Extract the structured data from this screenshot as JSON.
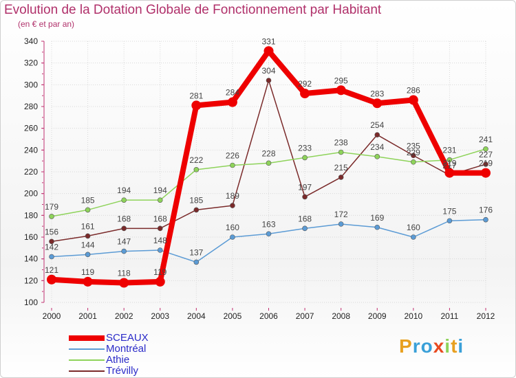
{
  "title": "Evolution de la Dotation Globale de Fonctionnement par Habitant",
  "subtitle": "(en € et par an)",
  "logo": "Proxiti",
  "chart_data": {
    "type": "line",
    "title": "Evolution de la Dotation Globale de Fonctionnement par Habitant",
    "subtitle": "(en € et par an)",
    "xlabel": "",
    "ylabel": "",
    "x": [
      "2000",
      "2001",
      "2002",
      "2003",
      "2004",
      "2005",
      "2006",
      "2007",
      "2008",
      "2009",
      "2010",
      "2011",
      "2012"
    ],
    "ylim": [
      100,
      340
    ],
    "yticks": [
      100,
      120,
      140,
      160,
      180,
      200,
      220,
      240,
      260,
      280,
      300,
      320,
      340
    ],
    "grid": true,
    "legend_position": "bottom-left",
    "series": [
      {
        "name": "SCEAUX",
        "color": "#ee0000",
        "values": [
          121,
          119,
          118,
          119,
          281,
          284,
          331,
          292,
          295,
          283,
          286,
          219,
          219
        ],
        "labels": [
          "121",
          "119",
          "118",
          "119",
          "281",
          "284",
          "331",
          "292",
          "295",
          "283",
          "286",
          "219",
          "219"
        ]
      },
      {
        "name": "Montréal",
        "color": "#5b9bd5",
        "values": [
          142,
          144,
          147,
          148,
          137,
          160,
          163,
          168,
          172,
          169,
          160,
          175,
          176
        ],
        "labels": [
          "142",
          "144",
          "147",
          "148",
          "137",
          "160",
          "163",
          "168",
          "172",
          "169",
          "160",
          "175",
          "176"
        ]
      },
      {
        "name": "Athie",
        "color": "#8ed35a",
        "values": [
          179,
          185,
          194,
          194,
          222,
          226,
          228,
          233,
          238,
          234,
          229,
          231,
          241
        ],
        "labels": [
          "179",
          "185",
          "194",
          "194",
          "222",
          "226",
          "228",
          "233",
          "238",
          "234",
          "229",
          "231",
          "241"
        ]
      },
      {
        "name": "Trévilly",
        "color": "#7a2a2a",
        "values": [
          156,
          161,
          168,
          168,
          185,
          189,
          304,
          197,
          215,
          254,
          235,
          217,
          227
        ],
        "labels": [
          "156",
          "161",
          "168",
          "168",
          "185",
          "189",
          "304",
          "197",
          "215",
          "254",
          "235",
          "217",
          "227"
        ]
      }
    ]
  }
}
